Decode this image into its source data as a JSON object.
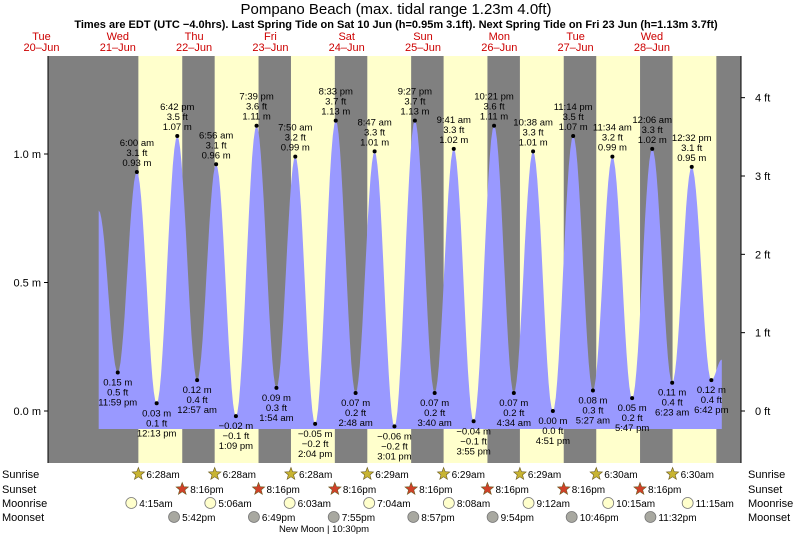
{
  "title": "Pompano Beach (max. tidal range 1.23m 4.0ft)",
  "subtitle": "Times are EDT (UTC −4.0hrs). Last Spring Tide on Sat 10 Jun (h=0.95m 3.1ft). Next Spring Tide on Fri 23 Jun (h=1.13m 3.7ft)",
  "colors": {
    "night": "#808080",
    "day": "#ffffcc",
    "tide": "#9999ff",
    "date_text": "#cc0000",
    "sunrise_star": "#c8b432",
    "sunset_star": "#d04028",
    "moonrise": "#ffffcc",
    "moonset": "#a8a8a0"
  },
  "days": [
    {
      "day": "Tue",
      "date": "20–Jun"
    },
    {
      "day": "Wed",
      "date": "21–Jun"
    },
    {
      "day": "Thu",
      "date": "22–Jun"
    },
    {
      "day": "Fri",
      "date": "23–Jun"
    },
    {
      "day": "Sat",
      "date": "24–Jun"
    },
    {
      "day": "Sun",
      "date": "25–Jun"
    },
    {
      "day": "Mon",
      "date": "26–Jun"
    },
    {
      "day": "Tue",
      "date": "27–Jun"
    },
    {
      "day": "Wed",
      "date": "28–Jun"
    }
  ],
  "chart_data": {
    "type": "area",
    "x_unit": "hours since 00:00 Tue 20-Jun",
    "ylim": [
      -0.16,
      1.23
    ],
    "y_ticks_m": [
      {
        "v": 0.0,
        "label": "0.0 m"
      },
      {
        "v": 0.5,
        "label": "0.5 m"
      },
      {
        "v": 1.0,
        "label": "1.0 m"
      }
    ],
    "y_ticks_ft": [
      {
        "v": 0,
        "label": "0 ft"
      },
      {
        "v": 1,
        "label": "1 ft"
      },
      {
        "v": 2,
        "label": "2 ft"
      },
      {
        "v": 3,
        "label": "3 ft"
      },
      {
        "v": 4,
        "label": "4 ft"
      }
    ],
    "series_start": {
      "hour": 18.0,
      "m": 0.78
    },
    "series_end": {
      "hour": 214.0,
      "m": 0.2
    },
    "tides": [
      {
        "hour": 23.98,
        "m": 0.15,
        "label": [
          "0.15 m",
          "0.5 ft",
          "11:59 pm"
        ],
        "type": "low"
      },
      {
        "hour": 30.0,
        "m": 0.93,
        "label": [
          "6:00 am",
          "3.1 ft",
          "0.93 m"
        ],
        "type": "high"
      },
      {
        "hour": 36.22,
        "m": 0.03,
        "label": [
          "0.03 m",
          "0.1 ft",
          "12:13 pm"
        ],
        "type": "low"
      },
      {
        "hour": 42.7,
        "m": 1.07,
        "label": [
          "6:42 pm",
          "3.5 ft",
          "1.07 m"
        ],
        "type": "high"
      },
      {
        "hour": 48.95,
        "m": 0.12,
        "label": [
          "0.12 m",
          "0.4 ft",
          "12:57 am"
        ],
        "type": "low"
      },
      {
        "hour": 54.93,
        "m": 0.96,
        "label": [
          "6:56 am",
          "3.1 ft",
          "0.96 m"
        ],
        "type": "high"
      },
      {
        "hour": 61.15,
        "m": -0.02,
        "label": [
          "−0.02 m",
          "−0.1 ft",
          "1:09 pm"
        ],
        "type": "low"
      },
      {
        "hour": 67.65,
        "m": 1.11,
        "label": [
          "7:39 pm",
          "3.6 ft",
          "1.11 m"
        ],
        "type": "high"
      },
      {
        "hour": 73.9,
        "m": 0.09,
        "label": [
          "0.09 m",
          "0.3 ft",
          "1:54 am"
        ],
        "type": "low"
      },
      {
        "hour": 79.83,
        "m": 0.99,
        "label": [
          "7:50 am",
          "3.2 ft",
          "0.99 m"
        ],
        "type": "high"
      },
      {
        "hour": 86.07,
        "m": -0.05,
        "label": [
          "−0.05 m",
          "−0.2 ft",
          "2:04 pm"
        ],
        "type": "low"
      },
      {
        "hour": 92.55,
        "m": 1.13,
        "label": [
          "8:33 pm",
          "3.7 ft",
          "1.13 m"
        ],
        "type": "high"
      },
      {
        "hour": 98.8,
        "m": 0.07,
        "label": [
          "0.07 m",
          "0.2 ft",
          "2:48 am"
        ],
        "type": "low"
      },
      {
        "hour": 104.78,
        "m": 1.01,
        "label": [
          "8:47 am",
          "3.3 ft",
          "1.01 m"
        ],
        "type": "high"
      },
      {
        "hour": 111.02,
        "m": -0.06,
        "label": [
          "−0.06 m",
          "−0.2 ft",
          "3:01 pm"
        ],
        "type": "low"
      },
      {
        "hour": 117.45,
        "m": 1.13,
        "label": [
          "9:27 pm",
          "3.7 ft",
          "1.13 m"
        ],
        "type": "high"
      },
      {
        "hour": 123.67,
        "m": 0.07,
        "label": [
          "0.07 m",
          "0.2 ft",
          "3:40 am"
        ],
        "type": "low"
      },
      {
        "hour": 129.68,
        "m": 1.02,
        "label": [
          "9:41 am",
          "3.3 ft",
          "1.02 m"
        ],
        "type": "high"
      },
      {
        "hour": 135.92,
        "m": -0.04,
        "label": [
          "−0.04 m",
          "−0.1 ft",
          "3:55 pm"
        ],
        "type": "low"
      },
      {
        "hour": 142.35,
        "m": 1.11,
        "label": [
          "10:21 pm",
          "3.6 ft",
          "1.11 m"
        ],
        "type": "high"
      },
      {
        "hour": 148.57,
        "m": 0.07,
        "label": [
          "0.07 m",
          "0.2 ft",
          "4:34 am"
        ],
        "type": "low"
      },
      {
        "hour": 154.63,
        "m": 1.01,
        "label": [
          "10:38 am",
          "3.3 ft",
          "1.01 m"
        ],
        "type": "high"
      },
      {
        "hour": 160.85,
        "m": 0.0,
        "label": [
          "0.00 m",
          "0.0 ft",
          "4:51 pm"
        ],
        "type": "low"
      },
      {
        "hour": 167.23,
        "m": 1.07,
        "label": [
          "11:14 pm",
          "3.5 ft",
          "1.07 m"
        ],
        "type": "high"
      },
      {
        "hour": 173.45,
        "m": 0.08,
        "label": [
          "0.08 m",
          "0.3 ft",
          "5:27 am"
        ],
        "type": "low"
      },
      {
        "hour": 179.57,
        "m": 0.99,
        "label": [
          "11:34 am",
          "3.2 ft",
          "0.99 m"
        ],
        "type": "high"
      },
      {
        "hour": 185.78,
        "m": 0.05,
        "label": [
          "0.05 m",
          "0.2 ft",
          "5:47 pm"
        ],
        "type": "low"
      },
      {
        "hour": 192.1,
        "m": 1.02,
        "label": [
          "12:06 am",
          "3.3 ft",
          "1.02 m"
        ],
        "type": "high"
      },
      {
        "hour": 198.38,
        "m": 0.11,
        "label": [
          "0.11 m",
          "0.4 ft",
          "6:23 am"
        ],
        "type": "low"
      },
      {
        "hour": 204.53,
        "m": 0.95,
        "label": [
          "12:32 pm",
          "3.1 ft",
          "0.95 m"
        ],
        "type": "high"
      },
      {
        "hour": 210.7,
        "m": 0.12,
        "label": [
          "0.12 m",
          "0.4 ft",
          "6:42 pm"
        ],
        "type": "low"
      }
    ],
    "daylight": [
      {
        "rise": 30.47,
        "set": 44.27
      },
      {
        "rise": 54.47,
        "set": 68.27
      },
      {
        "rise": 78.47,
        "set": 92.27
      },
      {
        "rise": 102.48,
        "set": 116.27
      },
      {
        "rise": 126.48,
        "set": 140.27
      },
      {
        "rise": 150.48,
        "set": 164.27
      },
      {
        "rise": 174.5,
        "set": 188.27
      },
      {
        "rise": 198.5,
        "set": 212.27
      }
    ]
  },
  "rows": {
    "sunrise": {
      "label": "Sunrise",
      "events": [
        {
          "hour": 30.47,
          "text": "6:28am"
        },
        {
          "hour": 54.47,
          "text": "6:28am"
        },
        {
          "hour": 78.47,
          "text": "6:28am"
        },
        {
          "hour": 102.48,
          "text": "6:29am"
        },
        {
          "hour": 126.48,
          "text": "6:29am"
        },
        {
          "hour": 150.48,
          "text": "6:29am"
        },
        {
          "hour": 174.5,
          "text": "6:30am"
        },
        {
          "hour": 198.5,
          "text": "6:30am"
        }
      ]
    },
    "sunset": {
      "label": "Sunset",
      "events": [
        {
          "hour": 44.27,
          "text": "8:16pm"
        },
        {
          "hour": 68.27,
          "text": "8:16pm"
        },
        {
          "hour": 92.27,
          "text": "8:16pm"
        },
        {
          "hour": 116.27,
          "text": "8:16pm"
        },
        {
          "hour": 140.27,
          "text": "8:16pm"
        },
        {
          "hour": 164.27,
          "text": "8:16pm"
        },
        {
          "hour": 188.27,
          "text": "8:16pm"
        }
      ]
    },
    "moonrise": {
      "label": "Moonrise",
      "events": [
        {
          "hour": 28.25,
          "text": "4:15am"
        },
        {
          "hour": 53.1,
          "text": "5:06am"
        },
        {
          "hour": 78.05,
          "text": "6:03am"
        },
        {
          "hour": 103.07,
          "text": "7:04am"
        },
        {
          "hour": 128.13,
          "text": "8:08am"
        },
        {
          "hour": 153.2,
          "text": "9:12am"
        },
        {
          "hour": 178.25,
          "text": "10:15am"
        },
        {
          "hour": 203.25,
          "text": "11:15am"
        }
      ]
    },
    "moonset": {
      "label": "Moonset",
      "events": [
        {
          "hour": 41.7,
          "text": "5:42pm"
        },
        {
          "hour": 66.82,
          "text": "6:49pm"
        },
        {
          "hour": 91.92,
          "text": "7:55pm"
        },
        {
          "hour": 116.95,
          "text": "8:57pm"
        },
        {
          "hour": 141.9,
          "text": "9:54pm"
        },
        {
          "hour": 166.77,
          "text": "10:46pm"
        },
        {
          "hour": 191.53,
          "text": "11:32pm"
        }
      ]
    }
  },
  "new_moon": {
    "text": "New Moon | 10:30pm"
  }
}
